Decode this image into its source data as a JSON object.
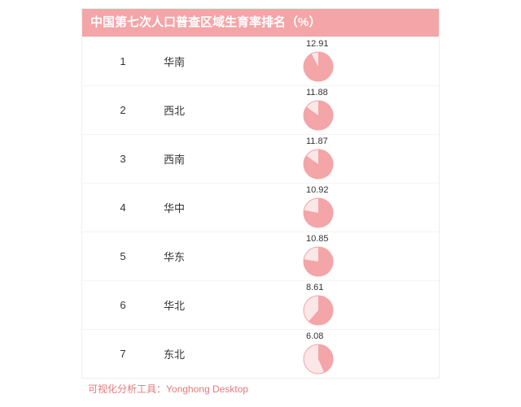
{
  "title": "中国第七次人口普查区域生育率排名（%）",
  "footer": "可视化分析工具：Yonghong Desktop",
  "colors": {
    "header_bg": "#f3a5a7",
    "header_text": "#ffffff",
    "footer_text": "#e37a7d",
    "body_text": "#333333",
    "pie_stroke": "#f3a5a7",
    "pie_main": "#f3a5a7",
    "pie_full_ring": "#fce7e8",
    "pie_outer_ring": "#f3a5a7",
    "card_border": "#eeeeee",
    "row_border": "#f4f4f4",
    "background": "#ffffff"
  },
  "typography": {
    "title_fontsize": 15,
    "title_weight": "bold",
    "body_fontsize": 13,
    "value_fontsize": 11,
    "footer_fontsize": 12
  },
  "chart": {
    "type": "ranked-list-with-pie",
    "pie_radius": 18,
    "pie_full_scale": 14.0,
    "rows": [
      {
        "rank": 1,
        "region": "华南",
        "value": 12.91
      },
      {
        "rank": 2,
        "region": "西北",
        "value": 11.88
      },
      {
        "rank": 3,
        "region": "西南",
        "value": 11.87
      },
      {
        "rank": 4,
        "region": "华中",
        "value": 10.92
      },
      {
        "rank": 5,
        "region": "华东",
        "value": 10.85
      },
      {
        "rank": 6,
        "region": "华北",
        "value": 8.61
      },
      {
        "rank": 7,
        "region": "东北",
        "value": 6.08
      }
    ]
  }
}
